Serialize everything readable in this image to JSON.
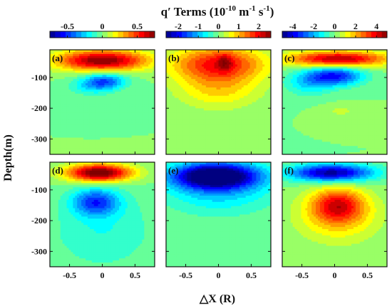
{
  "figure": {
    "title_main": "q′ Terms (10",
    "title_exp1": "-10",
    "title_mid": " m",
    "title_exp2": "-1",
    "title_mid2": " s",
    "title_exp3": "-1",
    "title_end": ")",
    "ylabel": "Depth(m)",
    "xlabel": "△X (R)"
  },
  "colors": {
    "background_field": "#7fe58e",
    "frame": "#111111"
  },
  "chart_data": {
    "type": "heatmap",
    "xlim": [
      -0.8,
      0.8
    ],
    "ylim": [
      -350,
      -10
    ],
    "x_ticks": [
      -0.5,
      0,
      0.5
    ],
    "x_tick_labels": [
      "-0.5",
      "0",
      "0.5"
    ],
    "y_ticks": [
      -100,
      -200,
      -300
    ],
    "y_tick_labels": [
      "-100",
      "-200",
      "-300"
    ],
    "colorbars": [
      {
        "column": 0,
        "min": -0.75,
        "max": 0.75,
        "ticks": [
          -0.5,
          0,
          0.5
        ],
        "labels": [
          "-0.5",
          "0",
          "0.5"
        ]
      },
      {
        "column": 1,
        "min": -2.6,
        "max": 2.6,
        "ticks": [
          -2,
          -1,
          0,
          1,
          2
        ],
        "labels": [
          "-2",
          "-1",
          "0",
          "1",
          "2"
        ]
      },
      {
        "column": 2,
        "min": -5,
        "max": 5,
        "ticks": [
          -4,
          -2,
          0,
          2,
          4
        ],
        "labels": [
          "-4",
          "-2",
          "0",
          "2",
          "4"
        ]
      }
    ],
    "panels": [
      {
        "label": "(a)",
        "column": 0,
        "row": 0,
        "features": [
          {
            "x": 0.0,
            "depth": -45,
            "sx": 0.5,
            "sy": 24,
            "amp": 0.75
          },
          {
            "x": 0.05,
            "depth": -110,
            "sx": 0.22,
            "sy": 18,
            "amp": -0.4
          },
          {
            "x": -0.15,
            "depth": -130,
            "sx": 0.25,
            "sy": 20,
            "amp": -0.2
          }
        ]
      },
      {
        "label": "(b)",
        "column": 1,
        "row": 0,
        "features": [
          {
            "x": 0.0,
            "depth": -55,
            "sx": 0.5,
            "sy": 40,
            "amp": 1.9
          },
          {
            "x": 0.1,
            "depth": -50,
            "sx": 0.08,
            "sy": 20,
            "amp": 0.7
          },
          {
            "x": 0.0,
            "depth": -140,
            "sx": 0.45,
            "sy": 45,
            "amp": 0.8
          }
        ]
      },
      {
        "label": "(c)",
        "column": 2,
        "row": 0,
        "features": [
          {
            "x": 0.05,
            "depth": -40,
            "sx": 0.55,
            "sy": 18,
            "amp": 4.6
          },
          {
            "x": 0.0,
            "depth": -95,
            "sx": 0.3,
            "sy": 22,
            "amp": -3.6
          },
          {
            "x": -0.4,
            "depth": -120,
            "sx": 0.25,
            "sy": 28,
            "amp": -1.4
          },
          {
            "x": 0.1,
            "depth": -210,
            "sx": 0.2,
            "sy": 15,
            "amp": 0.6
          }
        ]
      },
      {
        "label": "(d)",
        "column": 0,
        "row": 1,
        "features": [
          {
            "x": -0.05,
            "depth": -45,
            "sx": 0.35,
            "sy": 20,
            "amp": 0.85
          },
          {
            "x": -0.1,
            "depth": -140,
            "sx": 0.25,
            "sy": 30,
            "amp": -0.45
          },
          {
            "x": 0.0,
            "depth": -230,
            "sx": 0.55,
            "sy": 90,
            "amp": -0.15
          }
        ]
      },
      {
        "label": "(e)",
        "column": 1,
        "row": 1,
        "features": [
          {
            "x": -0.05,
            "depth": -55,
            "sx": 0.45,
            "sy": 28,
            "amp": -2.8
          },
          {
            "x": 0.0,
            "depth": -90,
            "sx": 0.6,
            "sy": 60,
            "amp": -1.0
          }
        ]
      },
      {
        "label": "(f)",
        "column": 2,
        "row": 1,
        "features": [
          {
            "x": -0.05,
            "depth": -45,
            "sx": 0.45,
            "sy": 20,
            "amp": -4.8
          },
          {
            "x": 0.05,
            "depth": -150,
            "sx": 0.28,
            "sy": 38,
            "amp": 3.2
          },
          {
            "x": 0.05,
            "depth": -190,
            "sx": 0.45,
            "sy": 60,
            "amp": 1.6
          }
        ]
      }
    ]
  }
}
